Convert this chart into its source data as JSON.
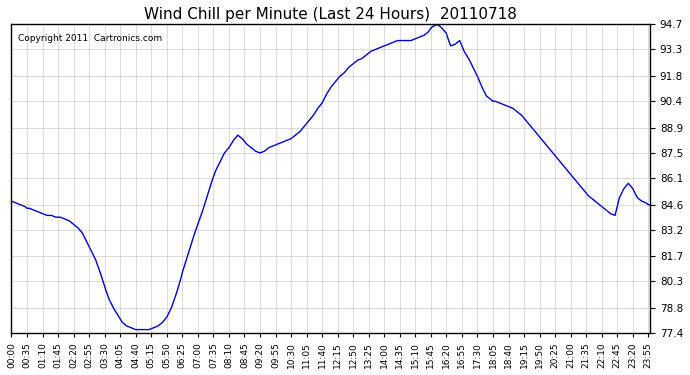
{
  "title": "Wind Chill per Minute (Last 24 Hours)  20110718",
  "copyright": "Copyright 2011  Cartronics.com",
  "line_color": "#0000cc",
  "background_color": "#ffffff",
  "grid_color": "#cccccc",
  "ylim": [
    77.4,
    94.7
  ],
  "yticks": [
    77.4,
    78.8,
    80.3,
    81.7,
    83.2,
    84.6,
    86.1,
    87.5,
    88.9,
    90.4,
    91.8,
    93.3,
    94.7
  ],
  "xtick_labels": [
    "00:00",
    "00:35",
    "01:10",
    "01:45",
    "02:20",
    "02:55",
    "03:30",
    "04:05",
    "04:40",
    "05:15",
    "05:50",
    "06:25",
    "07:00",
    "07:35",
    "08:10",
    "08:45",
    "09:20",
    "09:55",
    "10:30",
    "11:05",
    "11:40",
    "12:15",
    "12:50",
    "13:25",
    "14:00",
    "14:35",
    "15:10",
    "15:45",
    "16:20",
    "16:55",
    "17:30",
    "18:05",
    "18:40",
    "19:15",
    "19:50",
    "20:25",
    "21:00",
    "21:35",
    "22:10",
    "22:45",
    "23:20",
    "23:55"
  ],
  "n_points": 1440,
  "curve": {
    "00:00": 84.8,
    "00:10": 84.7,
    "00:20": 84.6,
    "00:30": 84.5,
    "00:35": 84.4,
    "00:40": 84.4,
    "00:50": 84.3,
    "01:00": 84.2,
    "01:10": 84.1,
    "01:20": 84.0,
    "01:30": 84.0,
    "01:40": 83.9,
    "01:50": 83.9,
    "02:00": 83.8,
    "02:10": 83.7,
    "02:20": 83.5,
    "02:30": 83.3,
    "02:40": 83.0,
    "02:50": 82.5,
    "03:00": 82.0,
    "03:10": 81.5,
    "03:20": 80.8,
    "03:30": 80.0,
    "03:40": 79.3,
    "03:50": 78.8,
    "04:00": 78.4,
    "04:10": 78.0,
    "04:20": 77.8,
    "04:30": 77.7,
    "04:40": 77.6,
    "04:50": 77.6,
    "05:00": 77.6,
    "05:10": 77.6,
    "05:20": 77.7,
    "05:30": 77.8,
    "05:40": 78.0,
    "05:50": 78.3,
    "06:00": 78.8,
    "06:10": 79.5,
    "06:20": 80.3,
    "06:25": 80.8,
    "06:30": 81.2,
    "06:40": 82.0,
    "06:50": 82.8,
    "07:00": 83.5,
    "07:10": 84.2,
    "07:20": 85.0,
    "07:30": 85.8,
    "07:40": 86.5,
    "07:50": 87.0,
    "08:00": 87.5,
    "08:10": 87.8,
    "08:20": 88.2,
    "08:30": 88.5,
    "08:40": 88.3,
    "08:50": 88.0,
    "09:00": 87.8,
    "09:10": 87.6,
    "09:20": 87.5,
    "09:30": 87.6,
    "09:40": 87.8,
    "09:50": 87.9,
    "10:00": 88.0,
    "10:10": 88.1,
    "10:20": 88.2,
    "10:30": 88.3,
    "10:40": 88.5,
    "10:50": 88.7,
    "11:00": 89.0,
    "11:10": 89.3,
    "11:20": 89.6,
    "11:30": 90.0,
    "11:40": 90.3,
    "11:50": 90.8,
    "12:00": 91.2,
    "12:10": 91.5,
    "12:20": 91.8,
    "12:30": 92.0,
    "12:40": 92.3,
    "12:50": 92.5,
    "13:00": 92.7,
    "13:10": 92.8,
    "13:20": 93.0,
    "13:25": 93.1,
    "13:30": 93.2,
    "13:40": 93.3,
    "13:50": 93.4,
    "14:00": 93.5,
    "14:10": 93.6,
    "14:20": 93.7,
    "14:30": 93.8,
    "14:40": 93.8,
    "14:50": 93.8,
    "15:00": 93.8,
    "15:10": 93.9,
    "15:20": 94.0,
    "15:30": 94.1,
    "15:40": 94.3,
    "15:45": 94.5,
    "15:50": 94.6,
    "16:00": 94.7,
    "16:10": 94.5,
    "16:20": 94.2,
    "16:25": 93.8,
    "16:30": 93.5,
    "16:40": 93.6,
    "16:50": 93.8,
    "16:55": 93.5,
    "17:00": 93.2,
    "17:10": 92.8,
    "17:20": 92.3,
    "17:30": 91.8,
    "17:40": 91.2,
    "17:50": 90.7,
    "18:00": 90.5,
    "18:05": 90.4,
    "18:10": 90.4,
    "18:20": 90.3,
    "18:30": 90.2,
    "18:40": 90.1,
    "18:50": 90.0,
    "19:00": 89.8,
    "19:10": 89.6,
    "19:20": 89.3,
    "19:30": 89.0,
    "19:40": 88.7,
    "19:50": 88.4,
    "20:00": 88.1,
    "20:10": 87.8,
    "20:20": 87.5,
    "20:30": 87.2,
    "20:40": 86.9,
    "20:50": 86.6,
    "21:00": 86.3,
    "21:10": 86.0,
    "21:20": 85.7,
    "21:30": 85.4,
    "21:40": 85.1,
    "21:50": 84.9,
    "22:00": 84.7,
    "22:10": 84.5,
    "22:20": 84.3,
    "22:30": 84.1,
    "22:40": 84.0,
    "22:50": 85.0,
    "23:00": 85.5,
    "23:10": 85.8,
    "23:20": 85.5,
    "23:30": 85.0,
    "23:40": 84.8,
    "23:50": 84.7,
    "23:55": 84.6
  }
}
